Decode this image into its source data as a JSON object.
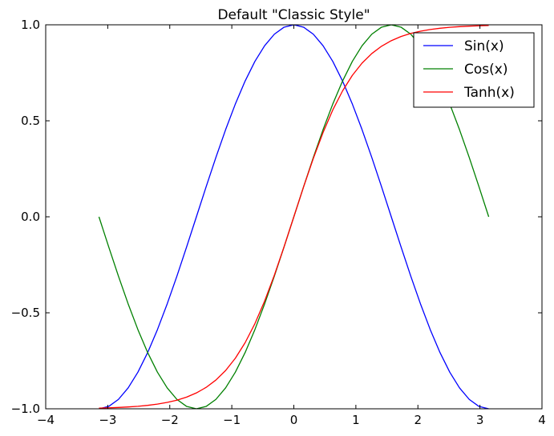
{
  "chart_data": {
    "type": "line",
    "title": "Default \"Classic Style\"",
    "xlabel": "",
    "ylabel": "",
    "xlim": [
      -4,
      4
    ],
    "ylim": [
      -1.0,
      1.0
    ],
    "x_ticks": [
      -4,
      -3,
      -2,
      -1,
      0,
      1,
      2,
      3,
      4
    ],
    "x_tick_labels": [
      "−4",
      "−3",
      "−2",
      "−1",
      "0",
      "1",
      "2",
      "3",
      "4"
    ],
    "y_ticks": [
      -1.0,
      -0.5,
      0.0,
      0.5,
      1.0
    ],
    "y_tick_labels": [
      "−1.0",
      "−0.5",
      "0.0",
      "0.5",
      "1.0"
    ],
    "grid": false,
    "legend_position": "top-right",
    "x_range": [
      -3.14159,
      3.14159
    ],
    "series": [
      {
        "name": "Sin(x)",
        "color": "#0000ff",
        "x": [
          -3.1416,
          -2.9845,
          -2.8274,
          -2.6704,
          -2.5133,
          -2.3562,
          -2.1991,
          -2.042,
          -1.885,
          -1.7279,
          -1.5708,
          -1.4137,
          -1.2566,
          -1.0996,
          -0.9425,
          -0.7854,
          -0.6283,
          -0.4712,
          -0.3142,
          -0.1571,
          0.0,
          0.1571,
          0.3142,
          0.4712,
          0.6283,
          0.7854,
          0.9425,
          1.0996,
          1.2566,
          1.4137,
          1.5708,
          1.7279,
          1.885,
          2.042,
          2.1991,
          2.3562,
          2.5133,
          2.6704,
          2.8274,
          2.9845,
          3.1416
        ],
        "y": [
          -1.0,
          -0.9877,
          -0.9511,
          -0.891,
          -0.809,
          -0.7071,
          -0.5878,
          -0.454,
          -0.309,
          -0.1564,
          0.0,
          0.1564,
          0.309,
          0.454,
          0.5878,
          0.7071,
          0.809,
          0.891,
          0.9511,
          0.9877,
          1.0,
          0.9877,
          0.9511,
          0.891,
          0.809,
          0.7071,
          0.5878,
          0.454,
          0.309,
          0.1564,
          0.0,
          -0.1564,
          -0.309,
          -0.454,
          -0.5878,
          -0.7071,
          -0.809,
          -0.891,
          -0.9511,
          -0.9877,
          -1.0
        ]
      },
      {
        "name": "Cos(x)",
        "color": "#008000",
        "x": [
          -3.1416,
          -2.9845,
          -2.8274,
          -2.6704,
          -2.5133,
          -2.3562,
          -2.1991,
          -2.042,
          -1.885,
          -1.7279,
          -1.5708,
          -1.4137,
          -1.2566,
          -1.0996,
          -0.9425,
          -0.7854,
          -0.6283,
          -0.4712,
          -0.3142,
          -0.1571,
          0.0,
          0.1571,
          0.3142,
          0.4712,
          0.6283,
          0.7854,
          0.9425,
          1.0996,
          1.2566,
          1.4137,
          1.5708,
          1.7279,
          1.885,
          2.042,
          2.1991,
          2.3562,
          2.5133,
          2.6704,
          2.8274,
          2.9845,
          3.1416
        ],
        "y": [
          0.0,
          -0.1564,
          -0.309,
          -0.454,
          -0.5878,
          -0.7071,
          -0.809,
          -0.891,
          -0.9511,
          -0.9877,
          -1.0,
          -0.9877,
          -0.9511,
          -0.891,
          -0.809,
          -0.7071,
          -0.5878,
          -0.454,
          -0.309,
          -0.1564,
          0.0,
          0.1564,
          0.309,
          0.454,
          0.5878,
          0.7071,
          0.809,
          0.891,
          0.9511,
          0.9877,
          1.0,
          0.9877,
          0.9511,
          0.891,
          0.809,
          0.7071,
          0.5878,
          0.454,
          0.309,
          0.1564,
          0.0
        ]
      },
      {
        "name": "Tanh(x)",
        "color": "#ff0000",
        "x": [
          -3.1416,
          -2.9845,
          -2.8274,
          -2.6704,
          -2.5133,
          -2.3562,
          -2.1991,
          -2.042,
          -1.885,
          -1.7279,
          -1.5708,
          -1.4137,
          -1.2566,
          -1.0996,
          -0.9425,
          -0.7854,
          -0.6283,
          -0.4712,
          -0.3142,
          -0.1571,
          0.0,
          0.1571,
          0.3142,
          0.4712,
          0.6283,
          0.7854,
          0.9425,
          1.0996,
          1.2566,
          1.4137,
          1.5708,
          1.7279,
          1.885,
          2.042,
          2.1991,
          2.3562,
          2.5133,
          2.6704,
          2.8274,
          2.9845,
          3.1416
        ],
        "y": [
          -0.9963,
          -0.9949,
          -0.993,
          -0.9904,
          -0.9869,
          -0.9821,
          -0.9756,
          -0.9668,
          -0.955,
          -0.939,
          -0.9172,
          -0.8885,
          -0.8503,
          -0.8005,
          -0.7364,
          -0.6558,
          -0.5569,
          -0.4391,
          -0.3042,
          -0.1558,
          0.0,
          0.1558,
          0.3042,
          0.4391,
          0.5569,
          0.6558,
          0.7364,
          0.8005,
          0.8503,
          0.8885,
          0.9172,
          0.939,
          0.955,
          0.9668,
          0.9756,
          0.9821,
          0.9869,
          0.9904,
          0.993,
          0.9949,
          0.9963
        ]
      }
    ]
  }
}
